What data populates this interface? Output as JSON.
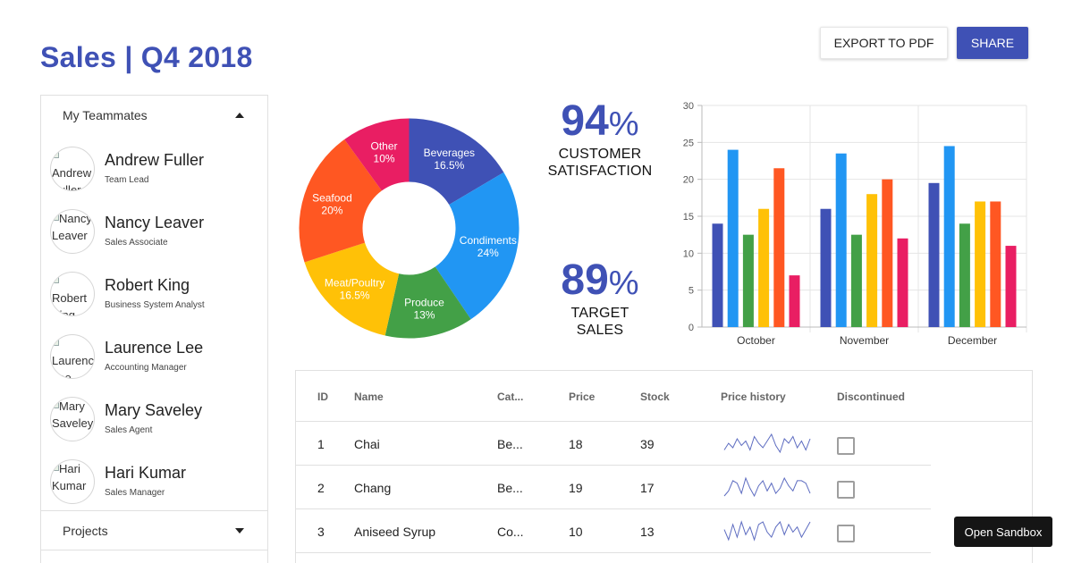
{
  "page": {
    "title": "Sales | Q4 2018"
  },
  "toolbar": {
    "export_label": "EXPORT TO PDF",
    "share_label": "SHARE"
  },
  "teammates": {
    "header": "My Teammates",
    "items": [
      {
        "name": "Andrew Fuller",
        "role": "Team Lead",
        "alt_lines": [
          "Andrew",
          "Fuller"
        ]
      },
      {
        "name": "Nancy Leaver",
        "role": "Sales Associate",
        "alt_lines": [
          "Nancy",
          "Leaver"
        ]
      },
      {
        "name": "Robert King",
        "role": "Business System Analyst",
        "alt_lines": [
          "Robert",
          "King"
        ]
      },
      {
        "name": "Laurence Lee",
        "role": "Accounting Manager",
        "alt_lines": [
          "Laurence",
          "Lee"
        ]
      },
      {
        "name": "Mary Saveley",
        "role": "Sales Agent",
        "alt_lines": [
          "Mary",
          "Saveley"
        ]
      },
      {
        "name": "Hari Kumar",
        "role": "Sales Manager",
        "alt_lines": [
          "Hari",
          "Kumar"
        ]
      }
    ]
  },
  "projects": {
    "label": "Projects"
  },
  "kpis": [
    {
      "value": "94",
      "suffix": "%",
      "label_lines": [
        "CUSTOMER",
        "SATISFACTION"
      ]
    },
    {
      "value": "89",
      "suffix": "%",
      "label_lines": [
        "TARGET",
        "SALES"
      ]
    }
  ],
  "chart_data": [
    {
      "type": "pie",
      "variant": "donut",
      "slices": [
        {
          "label": "Beverages",
          "value": 16.5,
          "display": "16.5%",
          "color": "#3f51b5"
        },
        {
          "label": "Condiments",
          "value": 24,
          "display": "24%",
          "color": "#2196f3"
        },
        {
          "label": "Produce",
          "value": 13,
          "display": "13%",
          "color": "#43a047"
        },
        {
          "label": "Meat/Poultry",
          "value": 16.5,
          "display": "16.5%",
          "color": "#ffc107"
        },
        {
          "label": "Seafood",
          "value": 20,
          "display": "20%",
          "color": "#ff5722"
        },
        {
          "label": "Other",
          "value": 10,
          "display": "10%",
          "color": "#e91e63"
        }
      ]
    },
    {
      "type": "bar",
      "categories": [
        "October",
        "November",
        "December"
      ],
      "ylim": [
        0,
        30
      ],
      "yticks": [
        0,
        5,
        10,
        15,
        20,
        25,
        30
      ],
      "grid": true,
      "series": [
        {
          "values": [
            14,
            16,
            19.5
          ],
          "color": "#3f51b5"
        },
        {
          "values": [
            24,
            23.5,
            24.5
          ],
          "color": "#2196f3"
        },
        {
          "values": [
            12.5,
            12.5,
            14
          ],
          "color": "#43a047"
        },
        {
          "values": [
            16,
            18,
            17
          ],
          "color": "#ffc107"
        },
        {
          "values": [
            21.5,
            20,
            17
          ],
          "color": "#ff5722"
        },
        {
          "values": [
            7,
            12,
            11
          ],
          "color": "#e91e63"
        }
      ]
    }
  ],
  "grid": {
    "columns": [
      "ID",
      "Name",
      "Cat...",
      "Price",
      "Stock",
      "Price history",
      "Discontinued"
    ],
    "rows": [
      {
        "id": "1",
        "name": "Chai",
        "category": "Be...",
        "price": "18",
        "stock": "39",
        "history": [
          3,
          6,
          4,
          8,
          5,
          7,
          3,
          9,
          6,
          4,
          7,
          10,
          5,
          2,
          8,
          6,
          9,
          4,
          7,
          3,
          8
        ],
        "discontinued": false
      },
      {
        "id": "2",
        "name": "Chang",
        "category": "Be...",
        "price": "19",
        "stock": "17",
        "history": [
          2,
          4,
          8,
          7,
          3,
          9,
          5,
          2,
          6,
          8,
          4,
          7,
          3,
          5,
          9,
          6,
          4,
          8,
          8,
          7,
          3
        ],
        "discontinued": false
      },
      {
        "id": "3",
        "name": "Aniseed Syrup",
        "category": "Co...",
        "price": "10",
        "stock": "13",
        "history": [
          5,
          1,
          7,
          2,
          8,
          3,
          6,
          1,
          7,
          8,
          4,
          2,
          6,
          8,
          3,
          7,
          4,
          6,
          2,
          5,
          8
        ],
        "discontinued": false
      }
    ]
  },
  "sandbox": {
    "label": "Open Sandbox"
  },
  "colors": {
    "accent": "#3f51b5",
    "spark": "#5c6bc0"
  }
}
